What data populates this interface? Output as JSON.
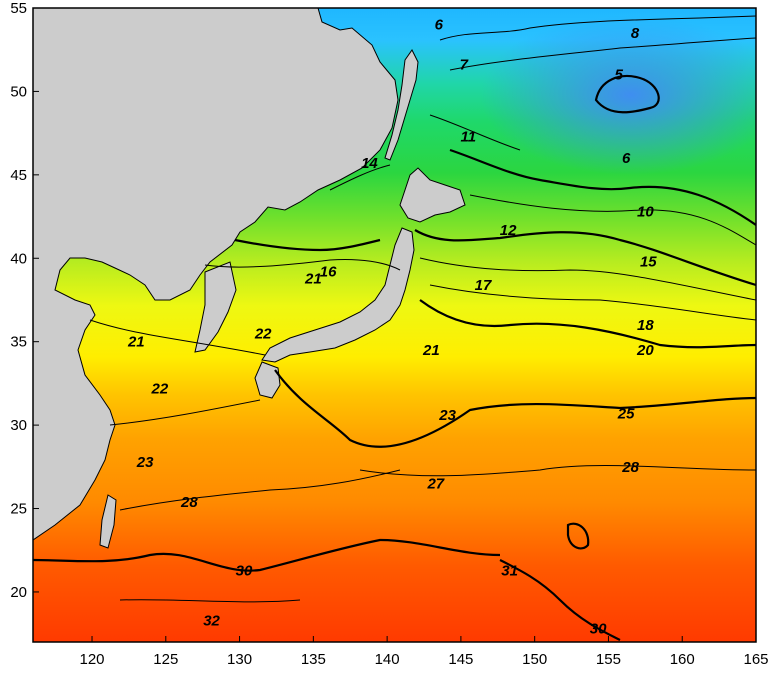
{
  "map": {
    "x_axis": {
      "ticks": [
        "120",
        "125",
        "130",
        "135",
        "140",
        "145",
        "150",
        "155",
        "160",
        "165"
      ],
      "range": [
        116,
        165
      ]
    },
    "y_axis": {
      "ticks": [
        "20",
        "25",
        "30",
        "35",
        "40",
        "45",
        "50",
        "55"
      ],
      "range": [
        17,
        55
      ]
    },
    "contour_labels": [
      {
        "text": "6",
        "lon": 143.5,
        "lat": 54.0
      },
      {
        "text": "8",
        "lon": 156.8,
        "lat": 53.5
      },
      {
        "text": "7",
        "lon": 145.2,
        "lat": 51.6
      },
      {
        "text": "5",
        "lon": 155.7,
        "lat": 51.0
      },
      {
        "text": "6",
        "lon": 156.2,
        "lat": 46.0
      },
      {
        "text": "11",
        "lon": 145.5,
        "lat": 47.3
      },
      {
        "text": "14",
        "lon": 138.8,
        "lat": 45.7
      },
      {
        "text": "10",
        "lon": 157.5,
        "lat": 42.8
      },
      {
        "text": "12",
        "lon": 148.2,
        "lat": 41.7
      },
      {
        "text": "16",
        "lon": 136.0,
        "lat": 39.2
      },
      {
        "text": "15",
        "lon": 157.7,
        "lat": 39.8
      },
      {
        "text": "21",
        "lon": 135.0,
        "lat": 38.8
      },
      {
        "text": "17",
        "lon": 146.5,
        "lat": 38.4
      },
      {
        "text": "22",
        "lon": 131.6,
        "lat": 35.5
      },
      {
        "text": "18",
        "lon": 157.5,
        "lat": 36.0
      },
      {
        "text": "21",
        "lon": 123.0,
        "lat": 35.0
      },
      {
        "text": "21",
        "lon": 143.0,
        "lat": 34.5
      },
      {
        "text": "20",
        "lon": 157.5,
        "lat": 34.5
      },
      {
        "text": "22",
        "lon": 124.6,
        "lat": 32.2
      },
      {
        "text": "23",
        "lon": 144.1,
        "lat": 30.6
      },
      {
        "text": "25",
        "lon": 156.2,
        "lat": 30.7
      },
      {
        "text": "23",
        "lon": 123.6,
        "lat": 27.8
      },
      {
        "text": "28",
        "lon": 156.5,
        "lat": 27.5
      },
      {
        "text": "27",
        "lon": 143.3,
        "lat": 26.5
      },
      {
        "text": "28",
        "lon": 126.6,
        "lat": 25.4
      },
      {
        "text": "30",
        "lon": 130.3,
        "lat": 21.3
      },
      {
        "text": "31",
        "lon": 148.3,
        "lat": 21.3
      },
      {
        "text": "30",
        "lon": 154.3,
        "lat": 17.8
      },
      {
        "text": "32",
        "lon": 128.1,
        "lat": 18.3
      }
    ]
  }
}
